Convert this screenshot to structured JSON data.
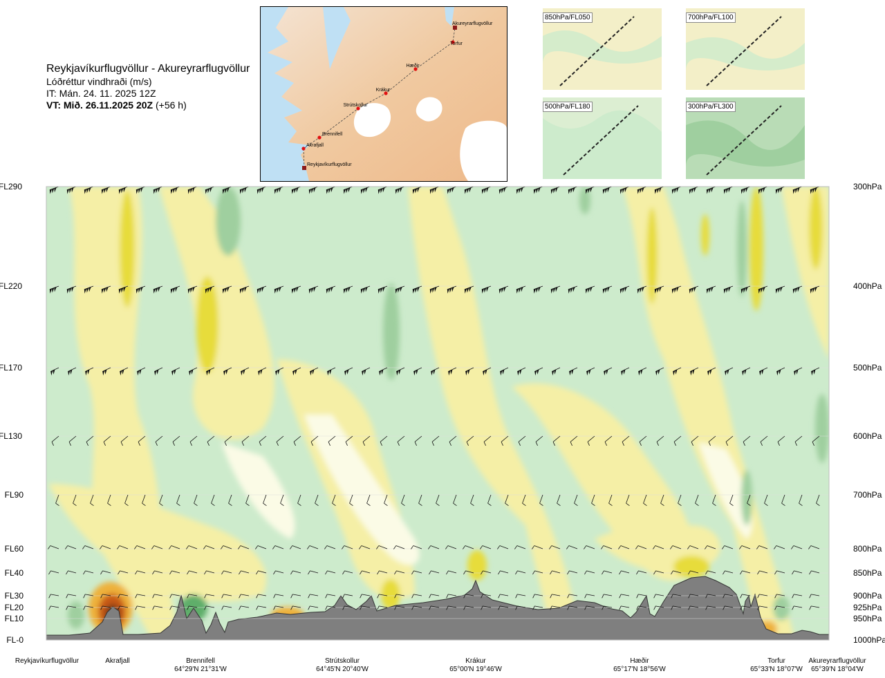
{
  "header": {
    "route": "Reykjavíkurflugvöllur - Akureyrarflugvöllur",
    "variable": "Lóðréttur vindhraði (m/s)",
    "issue_time": "IT: Mán. 24. 11. 2025 12Z",
    "valid_prefix": "VT: Mið. 26.11.2025 20Z",
    "valid_suffix": "(+56 h)"
  },
  "map": {
    "waypoints": [
      "Akureyrarflugvöllur",
      "Torfur",
      "Hæðir",
      "Krákur",
      "Strútskollur",
      "Brennifell",
      "Akrafjall",
      "Reykjavíkurflugvöllur"
    ]
  },
  "mini_maps": [
    {
      "label": "850hPa/FL050"
    },
    {
      "label": "700hPa/FL100"
    },
    {
      "label": "500hPa/FL180"
    },
    {
      "label": "300hPa/FL300"
    }
  ],
  "colors": {
    "strong_sink": "#7b3b12",
    "mid_sink": "#c85a17",
    "weak_sink": "#eeb13a",
    "sink_yellow": "#e7dc3a",
    "light_yellow": "#f5efa6",
    "neutral": "#fbfbe6",
    "light_green": "#cdebcc",
    "mid_green": "#9fcf9f",
    "deep_green": "#5fae6a",
    "terrain": "#7f7f7f"
  },
  "chart_data": {
    "type": "heatmap",
    "title": "Lóðréttur vindhraði (m/s)",
    "y_levels": [
      {
        "fl": "FL290",
        "hpa": "300hPa"
      },
      {
        "fl": "FL220",
        "hpa": "400hPa"
      },
      {
        "fl": "FL170",
        "hpa": "500hPa"
      },
      {
        "fl": "FL130",
        "hpa": "600hPa"
      },
      {
        "fl": "FL90",
        "hpa": "700hPa"
      },
      {
        "fl": "FL60",
        "hpa": "800hPa"
      },
      {
        "fl": "FL40",
        "hpa": "850hPa"
      },
      {
        "fl": "FL30",
        "hpa": "900hPa"
      },
      {
        "fl": "FL20",
        "hpa": "925hPa"
      },
      {
        "fl": "FL10",
        "hpa": "950hPa"
      },
      {
        "fl": "FL-0",
        "hpa": "1000hPa"
      }
    ],
    "waypoints": [
      {
        "name": "Reykjavíkurflugvöllur",
        "coords": ""
      },
      {
        "name": "Akrafjall",
        "coords": ""
      },
      {
        "name": "Brennifell",
        "coords": "64°29'N 21°31'W"
      },
      {
        "name": "Strútskollur",
        "coords": "64°45'N 20°40'W"
      },
      {
        "name": "Krákur",
        "coords": "65°00'N 19°46'W"
      },
      {
        "name": "Hæðir",
        "coords": "65°17'N 18°56'W"
      },
      {
        "name": "Torfur",
        "coords": "65°33'N 18°07'W"
      },
      {
        "name": "Akureyrarflugvöllur",
        "coords": "65°39'N 18°04'W"
      }
    ]
  }
}
